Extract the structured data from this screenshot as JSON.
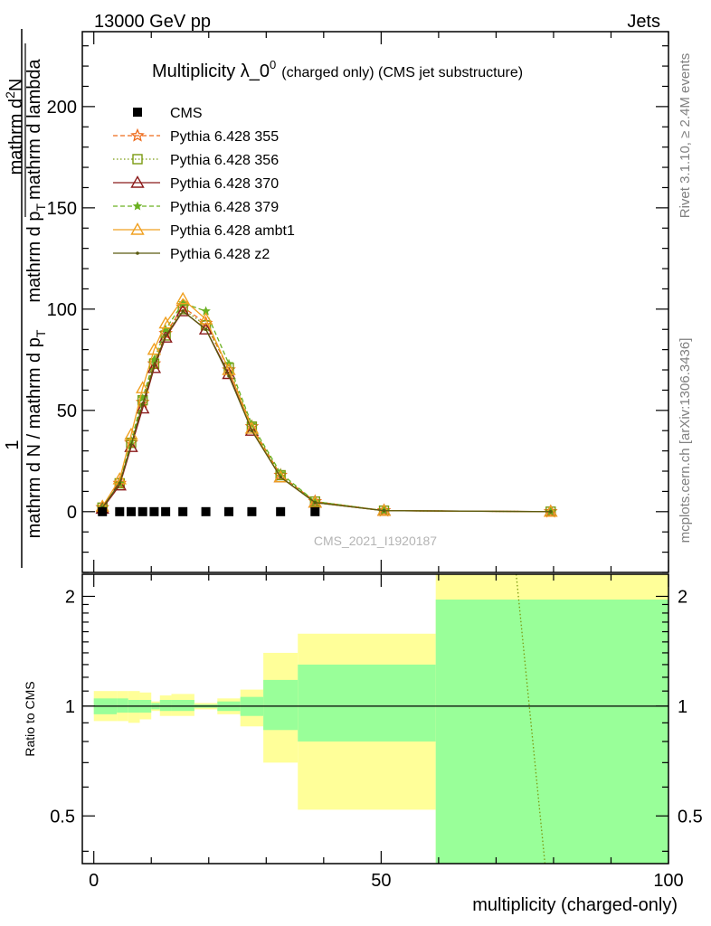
{
  "header": {
    "left": "13000 GeV pp",
    "right": "Jets"
  },
  "side": {
    "rivet": "Rivet 3.1.10, ≥ 2.4M events",
    "mcplots": "mcplots.cern.ch [arXiv:1306.3436]"
  },
  "main": {
    "title_main": "Multiplicity λ_0",
    "title_sup": "0",
    "title_rest": "(charged only) (CMS jet substructure)",
    "watermark": "CMS_2021_I1920187",
    "ylabel_top_numer": "1",
    "ylabel_top_denom_frac": "mathrm d N / mathrm d p",
    "ylabel_T": "T",
    "ylabel_numer": "mathrm d",
    "ylabel_numer_sup": "2",
    "ylabel_numer_N": "N",
    "ylabel_denom": "mathrm d p",
    "ylabel_denom_rest": "mathrm d lambda",
    "yticks": [
      "0",
      "50",
      "100",
      "150",
      "200"
    ],
    "ytick_values": [
      0,
      50,
      100,
      150,
      200
    ]
  },
  "ratio": {
    "ylabel": "Ratio to CMS",
    "yticks": [
      "0.5",
      "1",
      "2"
    ],
    "ytick_values": [
      0.5,
      1,
      2
    ]
  },
  "xaxis": {
    "label": "multiplicity (charged-only)",
    "ticks": [
      "0",
      "50",
      "100"
    ],
    "tick_values": [
      0,
      50,
      100
    ]
  },
  "legend": {
    "entries": [
      {
        "name": "CMS",
        "color": "#000000",
        "marker": "square-filled",
        "dash": ""
      },
      {
        "name": "Pythia 6.428 355",
        "color": "#ee6a1a",
        "marker": "star",
        "dash": "5,3"
      },
      {
        "name": "Pythia 6.428 356",
        "color": "#7a9a10",
        "marker": "square-open",
        "dash": "1.5,2.5"
      },
      {
        "name": "Pythia 6.428 370",
        "color": "#8b1a1a",
        "marker": "triangle-open",
        "dash": ""
      },
      {
        "name": "Pythia 6.428 379",
        "color": "#6ab020",
        "marker": "star-small",
        "dash": "5,3"
      },
      {
        "name": "Pythia 6.428 ambt1",
        "color": "#f0a020",
        "marker": "triangle-open",
        "dash": ""
      },
      {
        "name": "Pythia 6.428 z2",
        "color": "#5a5a10",
        "marker": "dot",
        "dash": ""
      }
    ]
  },
  "chart_data": {
    "type": "line",
    "xlim": [
      -2,
      100
    ],
    "ylim": [
      -30,
      237
    ],
    "ratio_ylim": [
      0.37,
      2.3
    ],
    "ratio_scale": "log",
    "cms": {
      "x": [
        1.5,
        4.5,
        6.5,
        8.5,
        10.5,
        12.5,
        15.5,
        19.5,
        23.5,
        27.5,
        32.5,
        38.5
      ],
      "y": [
        0,
        0,
        0,
        0,
        0,
        0,
        0,
        0,
        0,
        0,
        0,
        0
      ]
    },
    "series": [
      {
        "name": "Pythia 6.428 355",
        "x": [
          1.5,
          4.5,
          6.5,
          8.5,
          10.5,
          12.5,
          15.5,
          19.5,
          23.5,
          27.5,
          32.5,
          38.5,
          50.5,
          79.5
        ],
        "y": [
          2,
          14,
          34,
          54,
          73,
          88,
          101,
          93,
          70,
          42,
          18,
          5,
          0.5,
          0
        ]
      },
      {
        "name": "Pythia 6.428 356",
        "x": [
          1.5,
          4.5,
          6.5,
          8.5,
          10.5,
          12.5,
          15.5,
          19.5,
          23.5,
          27.5,
          32.5,
          38.5,
          50.5,
          79.5
        ],
        "y": [
          2,
          14,
          34,
          55,
          73,
          87,
          100,
          92,
          71,
          42,
          18,
          5,
          0.5,
          0
        ]
      },
      {
        "name": "Pythia 6.428 370",
        "x": [
          1.5,
          4.5,
          6.5,
          8.5,
          10.5,
          12.5,
          15.5,
          19.5,
          23.5,
          27.5,
          32.5,
          38.5,
          50.5,
          79.5
        ],
        "y": [
          1.5,
          13,
          32,
          51,
          71,
          86,
          99,
          90,
          68,
          40,
          17,
          4.5,
          0.5,
          0
        ]
      },
      {
        "name": "Pythia 6.428 379",
        "x": [
          1.5,
          4.5,
          6.5,
          8.5,
          10.5,
          12.5,
          15.5,
          19.5,
          23.5,
          27.5,
          32.5,
          38.5,
          50.5,
          79.5
        ],
        "y": [
          2,
          14,
          35,
          56,
          75,
          90,
          103,
          99,
          73,
          43,
          19,
          5,
          0.5,
          0
        ]
      },
      {
        "name": "Pythia 6.428 ambt1",
        "x": [
          1.5,
          4.5,
          6.5,
          8.5,
          10.5,
          12.5,
          15.5,
          19.5,
          23.5,
          27.5,
          32.5,
          38.5,
          50.5,
          79.5
        ],
        "y": [
          2.5,
          16,
          38,
          61,
          80,
          93,
          105,
          95,
          70,
          41,
          17,
          4.5,
          0.5,
          0
        ]
      },
      {
        "name": "Pythia 6.428 z2",
        "x": [
          1.5,
          4.5,
          6.5,
          8.5,
          10.5,
          12.5,
          15.5,
          19.5,
          23.5,
          27.5,
          32.5,
          38.5,
          50.5,
          79.5
        ],
        "y": [
          2,
          14,
          33,
          53,
          72,
          87,
          99,
          90,
          67,
          40,
          17,
          4.5,
          0.5,
          0
        ]
      }
    ],
    "ratio_bands": [
      {
        "x0": 0,
        "x1": 4,
        "yellow": [
          0.91,
          1.1
        ],
        "green": [
          0.95,
          1.05
        ]
      },
      {
        "x0": 4,
        "x1": 6,
        "yellow": [
          0.91,
          1.1
        ],
        "green": [
          0.96,
          1.05
        ]
      },
      {
        "x0": 6,
        "x1": 8,
        "yellow": [
          0.9,
          1.1
        ],
        "green": [
          0.96,
          1.04
        ]
      },
      {
        "x0": 8,
        "x1": 10,
        "yellow": [
          0.92,
          1.09
        ],
        "green": [
          0.96,
          1.04
        ]
      },
      {
        "x0": 10,
        "x1": 11.5,
        "yellow": [
          0.97,
          1.03
        ],
        "green": [
          0.98,
          1.02
        ]
      },
      {
        "x0": 11.5,
        "x1": 13.5,
        "yellow": [
          0.94,
          1.07
        ],
        "green": [
          0.97,
          1.04
        ]
      },
      {
        "x0": 13.5,
        "x1": 17.5,
        "yellow": [
          0.94,
          1.08
        ],
        "green": [
          0.97,
          1.04
        ]
      },
      {
        "x0": 17.5,
        "x1": 21.5,
        "yellow": [
          0.98,
          1.02
        ],
        "green": [
          0.99,
          1.01
        ]
      },
      {
        "x0": 21.5,
        "x1": 25.5,
        "yellow": [
          0.95,
          1.05
        ],
        "green": [
          0.97,
          1.03
        ]
      },
      {
        "x0": 25.5,
        "x1": 29.5,
        "yellow": [
          0.88,
          1.11
        ],
        "green": [
          0.94,
          1.06
        ]
      },
      {
        "x0": 29.5,
        "x1": 35.5,
        "yellow": [
          0.7,
          1.4
        ],
        "green": [
          0.86,
          1.18
        ]
      },
      {
        "x0": 35.5,
        "x1": 59.5,
        "yellow": [
          0.52,
          1.58
        ],
        "green": [
          0.8,
          1.3
        ]
      },
      {
        "x0": 59.5,
        "x1": 100,
        "yellow": [
          0.37,
          2.3
        ],
        "green": [
          0.37,
          1.96
        ]
      }
    ],
    "ratio_line": {
      "name": "Pythia 6.428 356",
      "x": [
        73.5,
        78.5
      ],
      "y": [
        2.3,
        0.37
      ]
    }
  }
}
